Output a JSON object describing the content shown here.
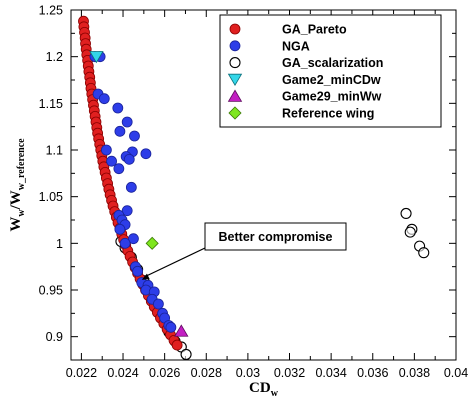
{
  "chart_data": {
    "type": "scatter",
    "title": "",
    "xlabel": {
      "main": "CD",
      "sub": "w"
    },
    "ylabel": {
      "main": "W",
      "sub1": "w",
      "slash": "/W",
      "sub2": "w_reference"
    },
    "xlim": [
      0.0215,
      0.04
    ],
    "ylim": [
      0.875,
      1.25
    ],
    "xticks": [
      0.022,
      0.024,
      0.026,
      0.028,
      0.03,
      0.032,
      0.034,
      0.036,
      0.038,
      0.04
    ],
    "xtick_labels": [
      "0.022",
      "0.024",
      "0.026",
      "0.028",
      "0.03",
      "0.032",
      "0.034",
      "0.036",
      "0.038",
      "0.04"
    ],
    "yticks": [
      0.9,
      0.95,
      1.0,
      1.05,
      1.1,
      1.15,
      1.2,
      1.25
    ],
    "ytick_labels": [
      "0.9",
      "0.95",
      "1",
      "1.05",
      "1.1",
      "1.15",
      "1.2",
      "1.25"
    ],
    "grid": false,
    "legend_position": "top-right",
    "series": [
      {
        "name": "GA_Pareto",
        "marker": "circle-filled",
        "color": "#e02020",
        "stroke": "#8a0000",
        "points": [
          [
            0.0221,
            1.238
          ],
          [
            0.02212,
            1.232
          ],
          [
            0.02215,
            1.226
          ],
          [
            0.02218,
            1.22
          ],
          [
            0.0222,
            1.214
          ],
          [
            0.02223,
            1.208
          ],
          [
            0.02226,
            1.202
          ],
          [
            0.0223,
            1.196
          ],
          [
            0.02233,
            1.19
          ],
          [
            0.02236,
            1.184
          ],
          [
            0.0224,
            1.178
          ],
          [
            0.02243,
            1.172
          ],
          [
            0.02246,
            1.166
          ],
          [
            0.0225,
            1.16
          ],
          [
            0.02254,
            1.154
          ],
          [
            0.02258,
            1.148
          ],
          [
            0.02262,
            1.142
          ],
          [
            0.02266,
            1.136
          ],
          [
            0.0227,
            1.13
          ],
          [
            0.02274,
            1.124
          ],
          [
            0.02278,
            1.118
          ],
          [
            0.02283,
            1.112
          ],
          [
            0.02288,
            1.106
          ],
          [
            0.02293,
            1.1
          ],
          [
            0.02298,
            1.094
          ],
          [
            0.02303,
            1.088
          ],
          [
            0.02308,
            1.082
          ],
          [
            0.02314,
            1.076
          ],
          [
            0.0232,
            1.07
          ],
          [
            0.02326,
            1.064
          ],
          [
            0.02332,
            1.058
          ],
          [
            0.02338,
            1.052
          ],
          [
            0.02345,
            1.046
          ],
          [
            0.02352,
            1.04
          ],
          [
            0.0236,
            1.034
          ],
          [
            0.02368,
            1.028
          ],
          [
            0.02376,
            1.022
          ],
          [
            0.02385,
            1.016
          ],
          [
            0.02394,
            1.01
          ],
          [
            0.02403,
            1.004
          ],
          [
            0.02413,
            0.998
          ],
          [
            0.02423,
            0.992
          ],
          [
            0.02434,
            0.986
          ],
          [
            0.02446,
            0.98
          ],
          [
            0.02458,
            0.974
          ],
          [
            0.0247,
            0.968
          ],
          [
            0.02482,
            0.962
          ],
          [
            0.02495,
            0.956
          ],
          [
            0.02508,
            0.95
          ],
          [
            0.02522,
            0.944
          ],
          [
            0.02536,
            0.938
          ],
          [
            0.0255,
            0.932
          ],
          [
            0.02565,
            0.926
          ],
          [
            0.0258,
            0.92
          ],
          [
            0.02596,
            0.914
          ],
          [
            0.02612,
            0.908
          ],
          [
            0.02628,
            0.902
          ],
          [
            0.02645,
            0.896
          ],
          [
            0.0266,
            0.891
          ]
        ]
      },
      {
        "name": "NGA",
        "marker": "circle-filled",
        "color": "#2d3de8",
        "stroke": "#1a239a",
        "points": [
          [
            0.02265,
            1.2
          ],
          [
            0.0229,
            1.2
          ],
          [
            0.0228,
            1.16
          ],
          [
            0.0231,
            1.155
          ],
          [
            0.02375,
            1.145
          ],
          [
            0.0242,
            1.13
          ],
          [
            0.02385,
            1.12
          ],
          [
            0.02455,
            1.115
          ],
          [
            0.02445,
            1.098
          ],
          [
            0.02415,
            1.093
          ],
          [
            0.0243,
            1.09
          ],
          [
            0.0251,
            1.096
          ],
          [
            0.0238,
            1.08
          ],
          [
            0.0232,
            1.1
          ],
          [
            0.02345,
            1.088
          ],
          [
            0.0244,
            1.06
          ],
          [
            0.0242,
            1.035
          ],
          [
            0.0238,
            1.03
          ],
          [
            0.02395,
            1.025
          ],
          [
            0.0241,
            1.02
          ],
          [
            0.02385,
            1.015
          ],
          [
            0.0245,
            1.005
          ],
          [
            0.0241,
            1.0
          ],
          [
            0.0246,
            0.975
          ],
          [
            0.0247,
            0.97
          ],
          [
            0.0249,
            0.958
          ],
          [
            0.0252,
            0.955
          ],
          [
            0.0251,
            0.95
          ],
          [
            0.0255,
            0.948
          ],
          [
            0.0254,
            0.94
          ],
          [
            0.0257,
            0.935
          ],
          [
            0.0259,
            0.925
          ],
          [
            0.026,
            0.92
          ],
          [
            0.0262,
            0.912
          ],
          [
            0.0263,
            0.91
          ]
        ]
      },
      {
        "name": "GA_scalarization",
        "marker": "circle-open",
        "color": "none",
        "stroke": "#000000",
        "points": [
          [
            0.0239,
            1.002
          ],
          [
            0.0241,
            0.995
          ],
          [
            0.0244,
            0.985
          ],
          [
            0.0247,
            0.972
          ],
          [
            0.025,
            0.96
          ],
          [
            0.0253,
            0.948
          ],
          [
            0.0256,
            0.935
          ],
          [
            0.0259,
            0.92
          ],
          [
            0.0262,
            0.905
          ],
          [
            0.0265,
            0.895
          ],
          [
            0.0268,
            0.889
          ],
          [
            0.02703,
            0.881
          ],
          [
            0.0376,
            1.032
          ],
          [
            0.03788,
            1.015
          ],
          [
            0.0378,
            1.012
          ],
          [
            0.03825,
            0.997
          ],
          [
            0.03845,
            0.99
          ]
        ]
      },
      {
        "name": "Game2_minCDw",
        "marker": "triangle-down",
        "color": "#33d6e8",
        "stroke": "#0b6f7a",
        "points": [
          [
            0.02272,
            1.2
          ]
        ]
      },
      {
        "name": "Game29_minWw",
        "marker": "triangle-up",
        "color": "#c21fc2",
        "stroke": "#5e0a5e",
        "points": [
          [
            0.0268,
            0.906
          ]
        ]
      },
      {
        "name": "Reference wing",
        "marker": "diamond",
        "color": "#7ee61e",
        "stroke": "#3c7a06",
        "points": [
          [
            0.0254,
            1.0
          ]
        ]
      }
    ],
    "annotations": [
      {
        "text": "Better compromise",
        "arrow_to": [
          0.0249,
          0.961
        ]
      }
    ]
  }
}
